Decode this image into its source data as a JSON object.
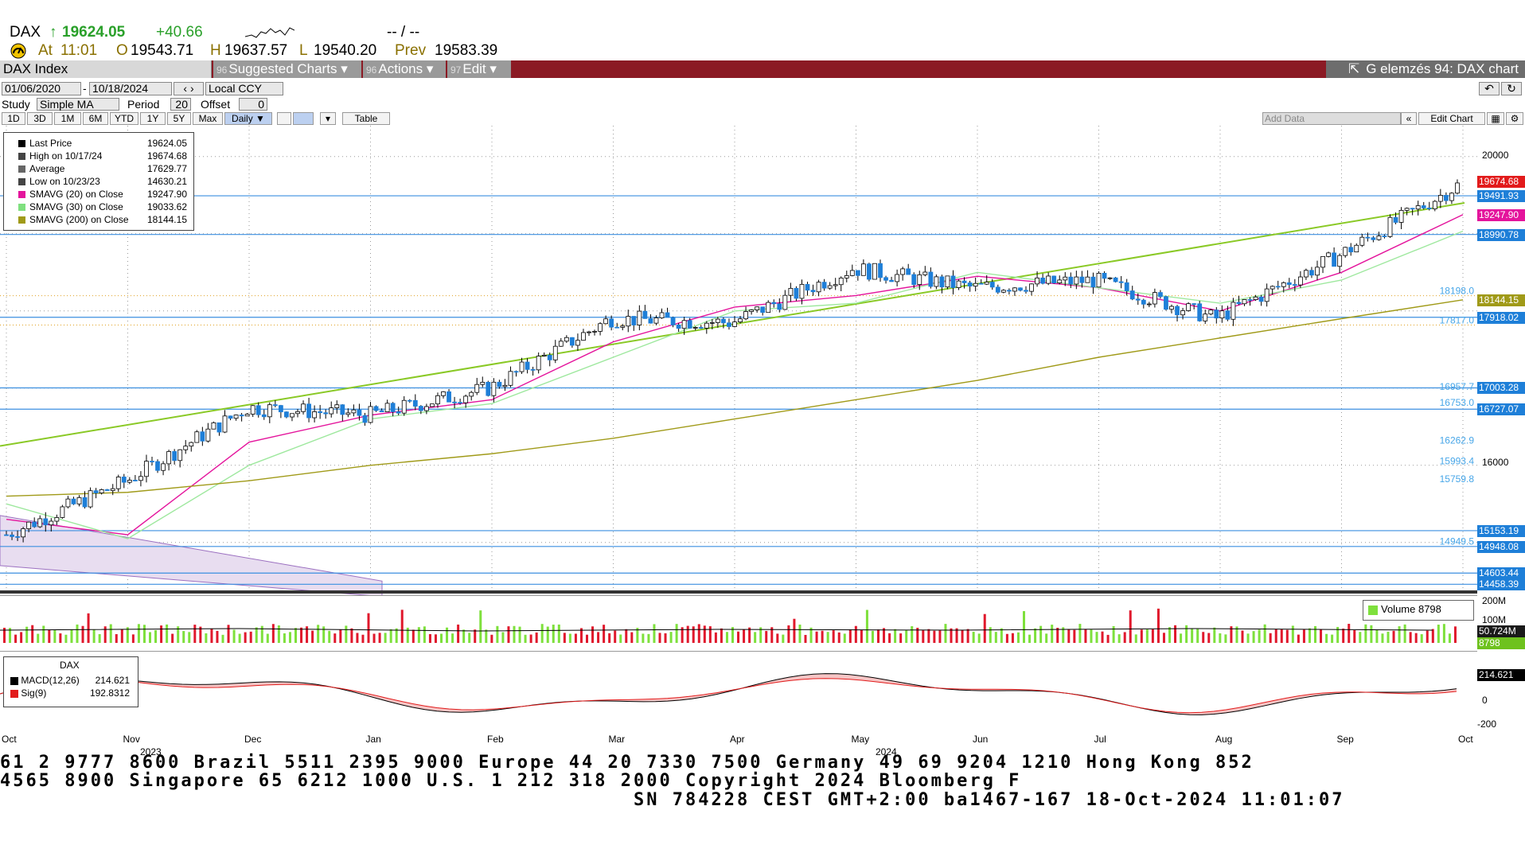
{
  "ticker": {
    "symbol": "DAX",
    "arrow": "↑",
    "last": "19624.05",
    "change": "+40.66",
    "dashes": "--  /  --",
    "at_label": "At",
    "time": "11:01",
    "open_label": "O",
    "open": "19543.71",
    "high_label": "H",
    "high": "19637.57",
    "low_label": "L",
    "low": "19540.20",
    "prev_label": "Prev",
    "prev": "19583.39"
  },
  "titlebar": {
    "security": "DAX Index",
    "menu": [
      {
        "num": "96",
        "label": "Suggested Charts",
        "arrow": "▾"
      },
      {
        "num": "96",
        "label": "Actions",
        "arrow": "▾"
      },
      {
        "num": "97",
        "label": "Edit",
        "arrow": "▾"
      }
    ],
    "title": "G elemzés 94: DAX chart"
  },
  "controls": {
    "start_date": "01/06/2020",
    "end_date": "10/18/2024",
    "currency": "Local CCY",
    "study_label": "Study",
    "study_value": "Simple MA",
    "period_label": "Period",
    "period_value": "20",
    "offset_label": "Offset",
    "offset_value": "0",
    "ranges": [
      "1D",
      "3D",
      "1M",
      "6M",
      "YTD",
      "1Y",
      "5Y",
      "Max"
    ],
    "frequency": "Daily ▼",
    "table_label": "Table",
    "add_data_placeholder": "Add Data",
    "edit_chart": "Edit Chart"
  },
  "legend": [
    {
      "name": "Last Price",
      "value": "19624.05",
      "color": "#000000"
    },
    {
      "name": "High on 10/17/24",
      "value": "19674.68",
      "color": "#444444"
    },
    {
      "name": "Average",
      "value": "17629.77",
      "color": "#666666"
    },
    {
      "name": "Low on 10/23/23",
      "value": "14630.21",
      "color": "#444444"
    },
    {
      "name": "SMAVG (20)  on Close",
      "value": "19247.90",
      "color": "#e4149c"
    },
    {
      "name": "SMAVG (30)  on Close",
      "value": "19033.62",
      "color": "#7fe07f"
    },
    {
      "name": "SMAVG (200)  on Close",
      "value": "18144.15",
      "color": "#a09a18"
    }
  ],
  "price_labels": [
    {
      "text": "19674.68",
      "color": "#e21b1b",
      "value": 19674.68
    },
    {
      "text": "19491.93",
      "color": "#1e7fd8",
      "value": 19491.93
    },
    {
      "text": "19247.90",
      "color": "#e4149c",
      "value": 19247.9
    },
    {
      "text": "18990.78",
      "color": "#1e7fd8",
      "value": 18990.78
    },
    {
      "text": "18144.15",
      "color": "#a09a18",
      "value": 18144.15
    },
    {
      "text": "17918.02",
      "color": "#1e7fd8",
      "value": 17918.02
    },
    {
      "text": "17003.28",
      "color": "#1e7fd8",
      "value": 17003.28
    },
    {
      "text": "16727.07",
      "color": "#1e7fd8",
      "value": 16727.07
    },
    {
      "text": "15153.19",
      "color": "#1e7fd8",
      "value": 15153.19
    },
    {
      "text": "14948.08",
      "color": "#1e7fd8",
      "value": 14948.08
    },
    {
      "text": "14603.44",
      "color": "#1e7fd8",
      "value": 14603.44
    },
    {
      "text": "14458.39",
      "color": "#1e7fd8",
      "value": 14458.39
    }
  ],
  "level_texts": [
    "18198.0",
    "17817.0",
    "16957.7",
    "16753.0",
    "16262.9",
    "15993.4",
    "15759.8",
    "14949.5"
  ],
  "y_ticks": [
    "20000",
    "16000"
  ],
  "volume": {
    "legend": "Volume  8798",
    "ticks": [
      "200M",
      "100M"
    ],
    "labels": [
      "50.724M",
      "8798"
    ]
  },
  "macd": {
    "title": "DAX",
    "macd_label": "MACD(12,26)",
    "macd_value": "214.621",
    "sig_label": "Sig(9)",
    "sig_value": "192.8312",
    "right_value": "214.621",
    "ticks": [
      "0",
      "-200"
    ]
  },
  "x_axis": {
    "months": [
      "Oct",
      "Nov",
      "Dec",
      "Jan",
      "Feb",
      "Mar",
      "Apr",
      "May",
      "Jun",
      "Jul",
      "Aug",
      "Sep",
      "Oct"
    ],
    "years": [
      "2023",
      "2024"
    ]
  },
  "footer": {
    "line1": "61 2 9777 8600 Brazil 5511 2395 9000 Europe 44 20 7330 7500 Germany 49 69 9204 1210 Hong Kong 852",
    "line2": " 4565 8900       Singapore 65 6212 1000       U.S. 1 212 318 2000        Copyright 2024 Bloomberg F",
    "line3": "SN 784228 CEST GMT+2:00 ba1467-167 18-Oct-2024 11:01:07"
  },
  "chart_data": {
    "type": "line",
    "title": "DAX Index",
    "xlabel": "",
    "ylabel": "",
    "x": [
      "2023-10",
      "2023-11",
      "2023-12",
      "2024-01",
      "2024-02",
      "2024-03",
      "2024-04",
      "2024-05",
      "2024-06",
      "2024-07",
      "2024-08",
      "2024-09",
      "2024-10"
    ],
    "series": [
      {
        "name": "Last Price",
        "values": [
          15100,
          15800,
          16750,
          16650,
          17000,
          17900,
          17850,
          18550,
          18300,
          18400,
          17900,
          18700,
          19624
        ]
      },
      {
        "name": "SMAVG (20)",
        "values": [
          15300,
          15100,
          16300,
          16650,
          16850,
          17600,
          18050,
          18200,
          18450,
          18300,
          18000,
          18500,
          19248
        ]
      },
      {
        "name": "SMAVG (30)",
        "values": [
          15500,
          15050,
          16000,
          16600,
          16800,
          17400,
          18000,
          18100,
          18500,
          18300,
          18100,
          18400,
          19034
        ]
      },
      {
        "name": "SMAVG (200)",
        "values": [
          15600,
          15650,
          15800,
          16000,
          16150,
          16350,
          16600,
          16850,
          17100,
          17400,
          17650,
          17900,
          18144
        ]
      }
    ],
    "ylim": [
      14400,
      20400
    ],
    "grid": true
  }
}
